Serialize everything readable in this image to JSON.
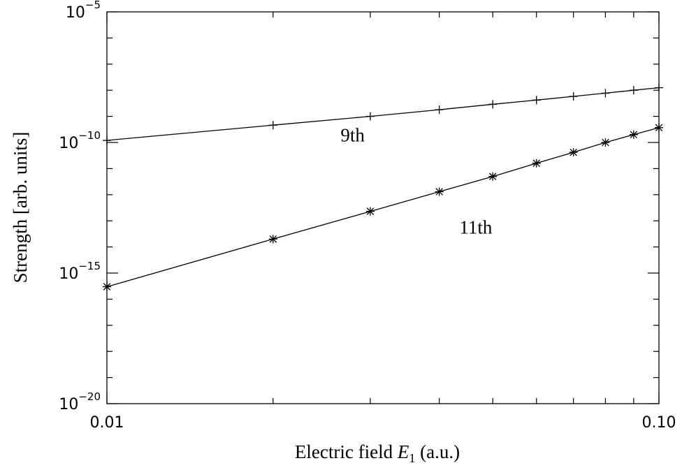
{
  "chart_data": {
    "type": "line",
    "xscale": "log",
    "yscale": "log",
    "xlim": [
      0.01,
      0.1
    ],
    "ylim": [
      1e-20,
      1e-05
    ],
    "xlabel_main": "Electric field ",
    "xlabel_var": "E",
    "xlabel_sub": "1",
    "xlabel_unit": " (a.u.)",
    "ylabel": "Strength [arb. units]",
    "x_ticklabels": [
      {
        "value": 0.01,
        "label": "0.01"
      },
      {
        "value": 0.1,
        "label": "0.10"
      }
    ],
    "y_ticklabels": [
      {
        "value": 1e-05,
        "base": "10",
        "exp": "−5"
      },
      {
        "value": 1e-10,
        "base": "10",
        "exp": "−10"
      },
      {
        "value": 1e-15,
        "base": "10",
        "exp": "−15"
      },
      {
        "value": 1e-20,
        "base": "10",
        "exp": "−20"
      }
    ],
    "series": [
      {
        "marker": "plus",
        "x": [
          0.01,
          0.02,
          0.03,
          0.04,
          0.05,
          0.06,
          0.07,
          0.08,
          0.09,
          0.1
        ],
        "y": [
          1.2e-10,
          4.6e-10,
          1e-09,
          1.8e-09,
          2.9e-09,
          4.2e-09,
          5.8e-09,
          7.7e-09,
          1e-08,
          1.25e-08
        ]
      },
      {
        "marker": "asterisk",
        "x": [
          0.01,
          0.02,
          0.03,
          0.04,
          0.05,
          0.06,
          0.07,
          0.08,
          0.09,
          0.1
        ],
        "y": [
          3e-16,
          2e-14,
          2.3e-13,
          1.3e-12,
          5e-12,
          1.6e-11,
          4.2e-11,
          1e-10,
          2e-10,
          3.7e-10
        ]
      }
    ],
    "annotations": [
      {
        "text": "9th",
        "x": 0.0265,
        "y": 1.1e-10
      },
      {
        "text": "11th",
        "x": 0.0435,
        "y": 3.2e-14
      }
    ]
  }
}
